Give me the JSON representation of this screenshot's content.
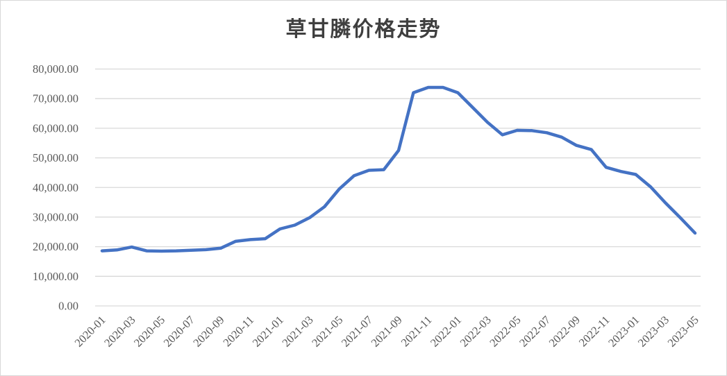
{
  "chart": {
    "title": "草甘膦价格走势",
    "colors": {
      "line": "#4472c4",
      "grid": "#d9d9d9",
      "axis_text": "#595959",
      "title_text": "#3f3f3f",
      "frame_border": "#d8d8d8",
      "background": "#ffffff"
    }
  },
  "chart_data": {
    "type": "line",
    "title": "草甘膦价格走势",
    "series_name": "草甘膦价格",
    "x": [
      "2020-01",
      "2020-02",
      "2020-03",
      "2020-04",
      "2020-05",
      "2020-06",
      "2020-07",
      "2020-08",
      "2020-09",
      "2020-10",
      "2020-11",
      "2020-12",
      "2021-01",
      "2021-02",
      "2021-03",
      "2021-04",
      "2021-05",
      "2021-06",
      "2021-07",
      "2021-08",
      "2021-09",
      "2021-10",
      "2021-11",
      "2021-12",
      "2022-01",
      "2022-02",
      "2022-03",
      "2022-04",
      "2022-05",
      "2022-06",
      "2022-07",
      "2022-08",
      "2022-09",
      "2022-10",
      "2022-11",
      "2022-12",
      "2023-01",
      "2023-02",
      "2023-03",
      "2023-04",
      "2023-05"
    ],
    "values": [
      18600,
      18900,
      19900,
      18600,
      18500,
      18600,
      18800,
      19000,
      19500,
      21800,
      22400,
      22700,
      26000,
      27300,
      29800,
      33500,
      39500,
      44000,
      45800,
      46000,
      52500,
      72000,
      73800,
      73800,
      72000,
      67000,
      62000,
      57800,
      59300,
      59200,
      58500,
      57000,
      54200,
      52800,
      46800,
      45400,
      44400,
      40200,
      34800,
      29800,
      24600
    ],
    "x_tick_labels": [
      "2020-01",
      "2020-03",
      "2020-05",
      "2020-07",
      "2020-09",
      "2020-11",
      "2021-01",
      "2021-03",
      "2021-05",
      "2021-07",
      "2021-09",
      "2021-11",
      "2022-01",
      "2022-03",
      "2022-05",
      "2022-07",
      "2022-09",
      "2022-11",
      "2023-01",
      "2023-03",
      "2023-05"
    ],
    "x_tick_every": 2,
    "y_ticks": [
      0,
      10000,
      20000,
      30000,
      40000,
      50000,
      60000,
      70000,
      80000
    ],
    "y_tick_labels": [
      "0.00",
      "10,000.00",
      "20,000.00",
      "30,000.00",
      "40,000.00",
      "50,000.00",
      "60,000.00",
      "70,000.00",
      "80,000.00"
    ],
    "ylim": [
      0,
      80000
    ],
    "xlabel": "",
    "ylabel": "",
    "grid": "horizontal",
    "legend": "none",
    "x_label_rotation_deg": -45
  }
}
